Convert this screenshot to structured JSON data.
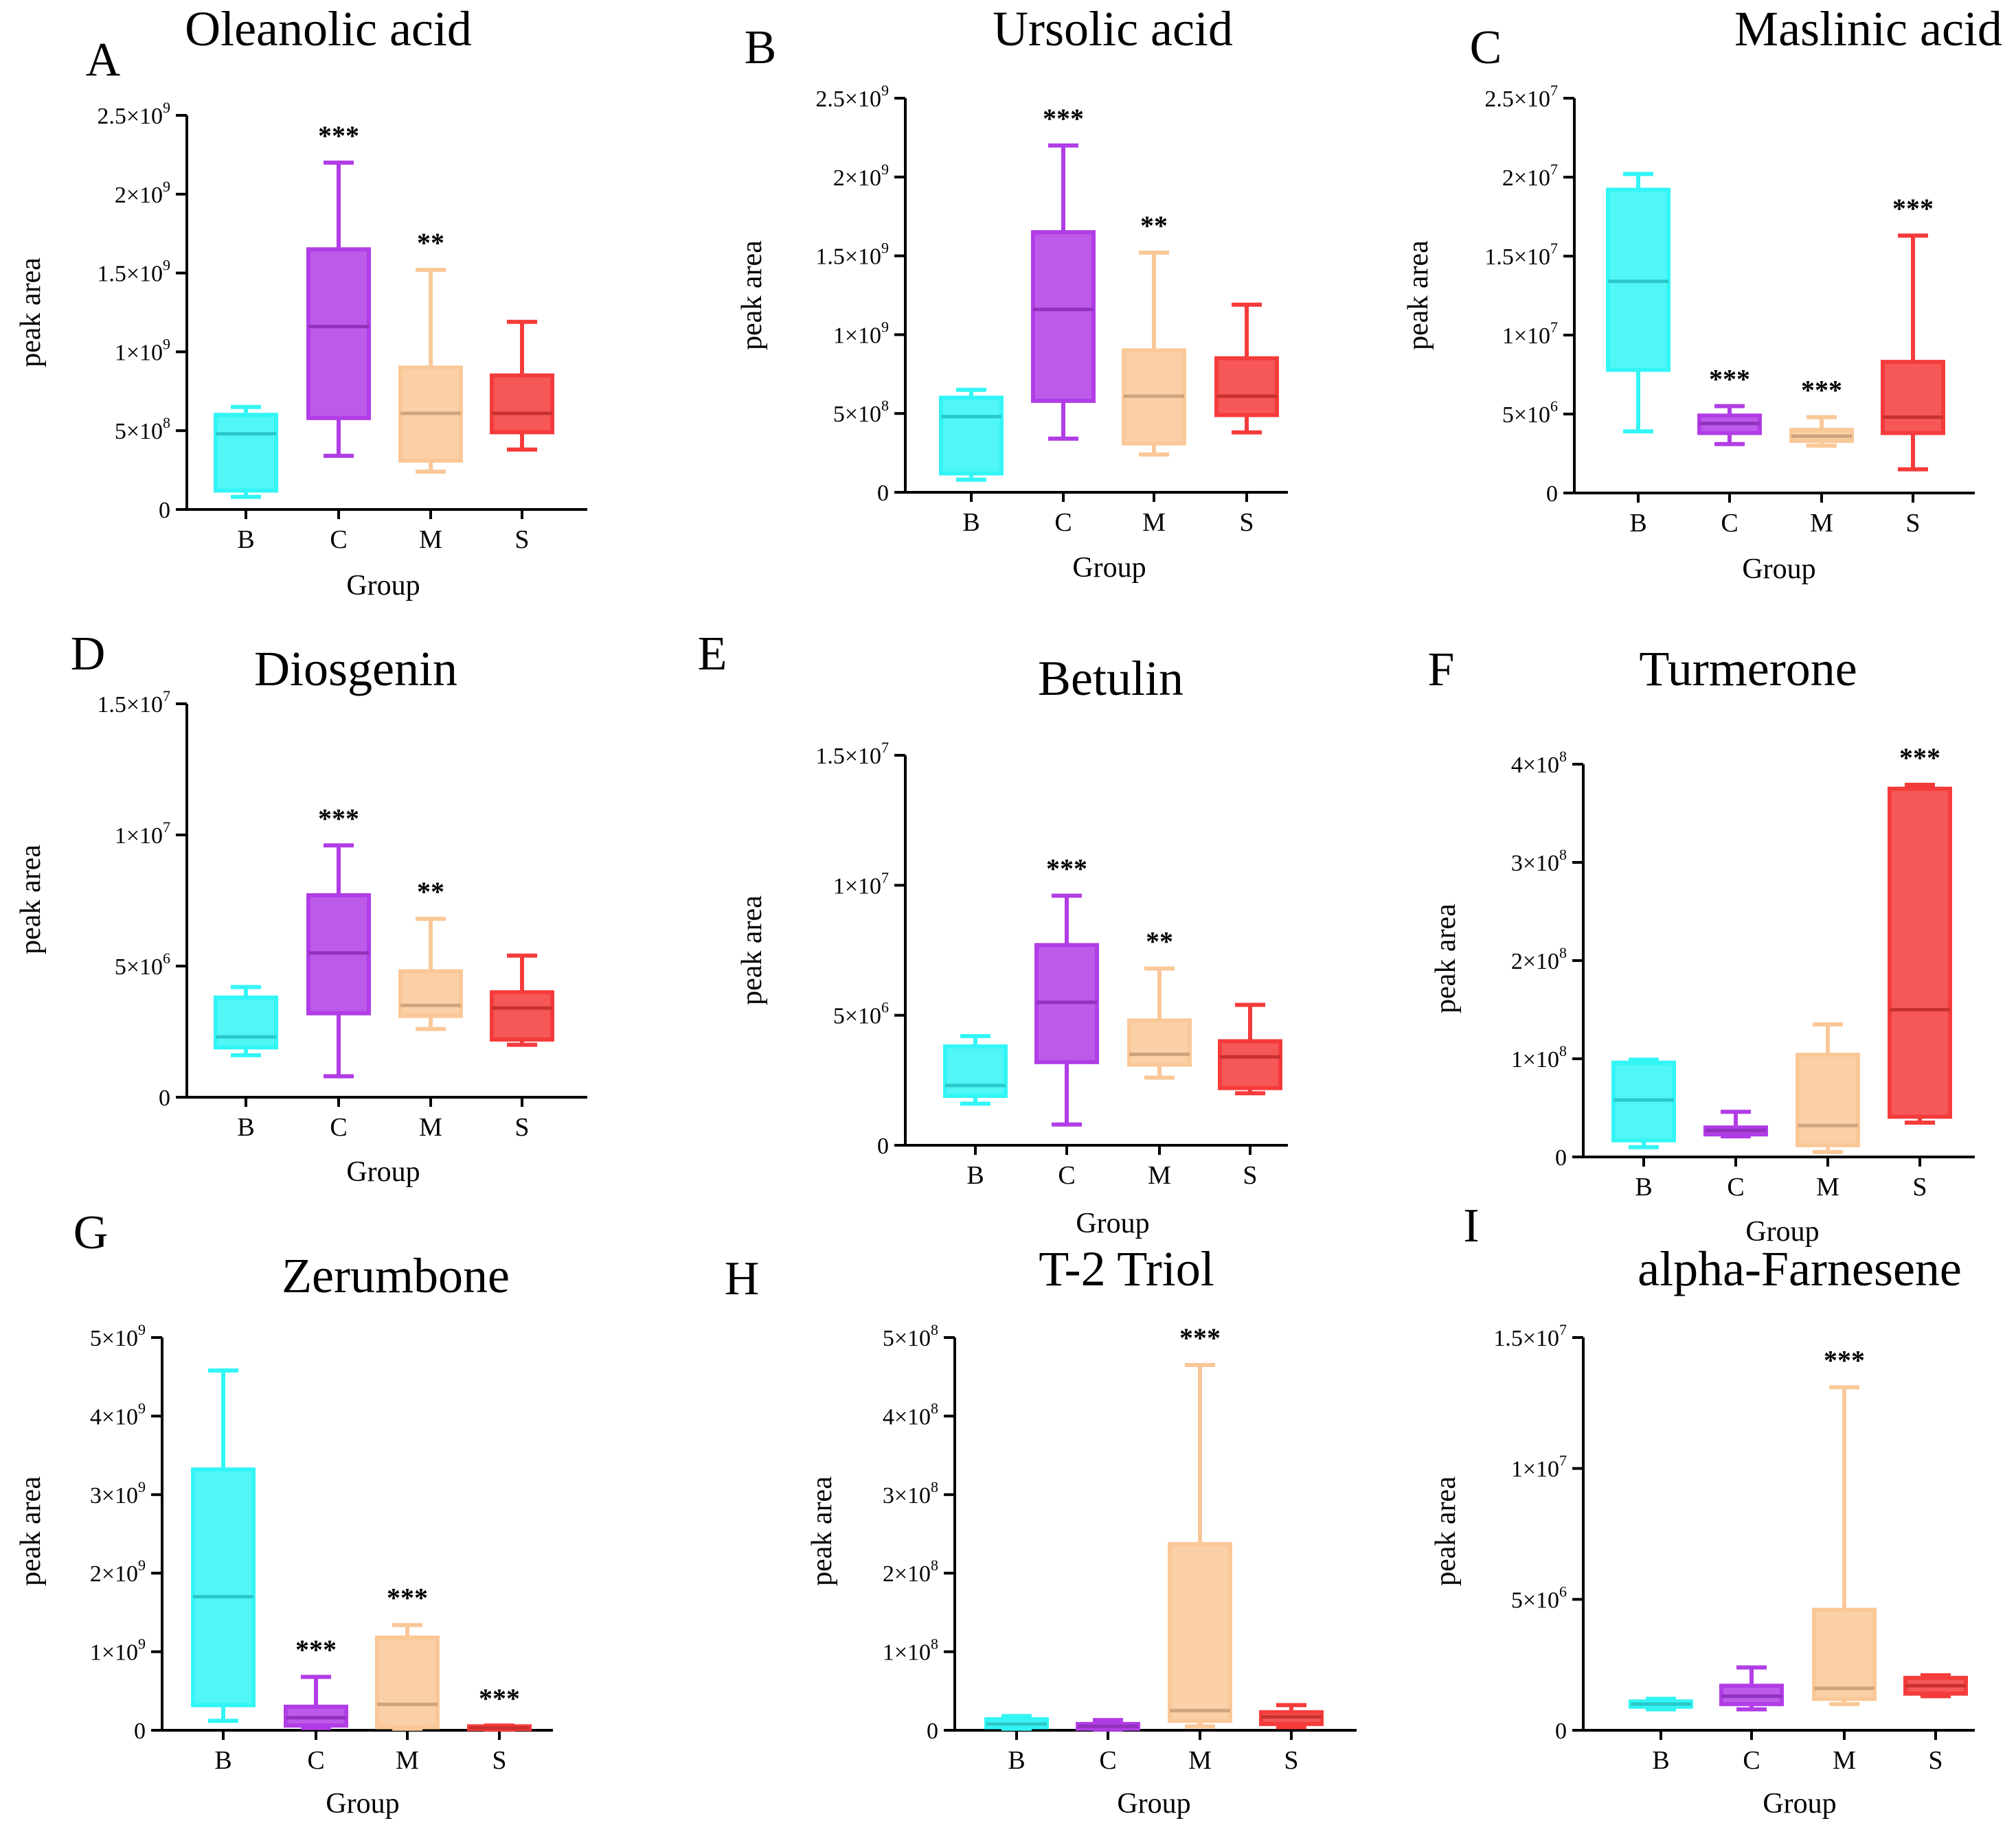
{
  "chart_data": [
    {
      "panel": "A",
      "type": "box",
      "title": "Oleanolic acid",
      "xlabel": "Group",
      "ylabel": "peak area",
      "ylim": [
        0,
        2500000000
      ],
      "yticks": [
        {
          "value": 0,
          "mant": "0",
          "exp": ""
        },
        {
          "value": 500000000,
          "mant": "5×10",
          "exp": "8"
        },
        {
          "value": 1000000000,
          "mant": "1×10",
          "exp": "9"
        },
        {
          "value": 1500000000,
          "mant": "1.5×10",
          "exp": "9"
        },
        {
          "value": 2000000000,
          "mant": "2×10",
          "exp": "9"
        },
        {
          "value": 2500000000,
          "mant": "2.5×10",
          "exp": "9"
        }
      ],
      "categories": [
        "B",
        "C",
        "M",
        "S"
      ],
      "boxes": [
        {
          "group": "B",
          "min": 80000000,
          "q1": 120000000,
          "median": 480000000,
          "q3": 600000000,
          "max": 650000000,
          "sig": "",
          "color": "#33F5F5"
        },
        {
          "group": "C",
          "min": 340000000,
          "q1": 580000000,
          "median": 1160000000,
          "q3": 1650000000,
          "max": 2200000000,
          "sig": "***",
          "color": "#B13DE6"
        },
        {
          "group": "M",
          "min": 240000000,
          "q1": 310000000,
          "median": 610000000,
          "q3": 900000000,
          "max": 1520000000,
          "sig": "**",
          "color": "#FAC898"
        },
        {
          "group": "S",
          "min": 380000000,
          "q1": 490000000,
          "median": 610000000,
          "q3": 850000000,
          "max": 1190000000,
          "sig": "",
          "color": "#F53B3B"
        }
      ]
    },
    {
      "panel": "B",
      "type": "box",
      "title": "Ursolic acid",
      "xlabel": "Group",
      "ylabel": "peak area",
      "ylim": [
        0,
        2500000000
      ],
      "yticks": [
        {
          "value": 0,
          "mant": "0",
          "exp": ""
        },
        {
          "value": 500000000,
          "mant": "5×10",
          "exp": "8"
        },
        {
          "value": 1000000000,
          "mant": "1×10",
          "exp": "9"
        },
        {
          "value": 1500000000,
          "mant": "1.5×10",
          "exp": "9"
        },
        {
          "value": 2000000000,
          "mant": "2×10",
          "exp": "9"
        },
        {
          "value": 2500000000,
          "mant": "2.5×10",
          "exp": "9"
        }
      ],
      "categories": [
        "B",
        "C",
        "M",
        "S"
      ],
      "boxes": [
        {
          "group": "B",
          "min": 80000000,
          "q1": 120000000,
          "median": 480000000,
          "q3": 600000000,
          "max": 650000000,
          "sig": "",
          "color": "#33F5F5"
        },
        {
          "group": "C",
          "min": 340000000,
          "q1": 580000000,
          "median": 1160000000,
          "q3": 1650000000,
          "max": 2200000000,
          "sig": "***",
          "color": "#B13DE6"
        },
        {
          "group": "M",
          "min": 240000000,
          "q1": 310000000,
          "median": 610000000,
          "q3": 900000000,
          "max": 1520000000,
          "sig": "**",
          "color": "#FAC898"
        },
        {
          "group": "S",
          "min": 380000000,
          "q1": 490000000,
          "median": 610000000,
          "q3": 850000000,
          "max": 1190000000,
          "sig": "",
          "color": "#F53B3B"
        }
      ]
    },
    {
      "panel": "C",
      "type": "box",
      "title": "Maslinic acid",
      "xlabel": "Group",
      "ylabel": "peak area",
      "ylim": [
        0,
        25000000
      ],
      "yticks": [
        {
          "value": 0,
          "mant": "0",
          "exp": ""
        },
        {
          "value": 5000000,
          "mant": "5×10",
          "exp": "6"
        },
        {
          "value": 10000000,
          "mant": "1×10",
          "exp": "7"
        },
        {
          "value": 15000000,
          "mant": "1.5×10",
          "exp": "7"
        },
        {
          "value": 20000000,
          "mant": "2×10",
          "exp": "7"
        },
        {
          "value": 25000000,
          "mant": "2.5×10",
          "exp": "7"
        }
      ],
      "categories": [
        "B",
        "C",
        "M",
        "S"
      ],
      "boxes": [
        {
          "group": "B",
          "min": 3900000,
          "q1": 7800000,
          "median": 13400000,
          "q3": 19200000,
          "max": 20200000,
          "sig": "",
          "color": "#33F5F5"
        },
        {
          "group": "C",
          "min": 3100000,
          "q1": 3800000,
          "median": 4400000,
          "q3": 4900000,
          "max": 5500000,
          "sig": "***",
          "color": "#B13DE6"
        },
        {
          "group": "M",
          "min": 3000000,
          "q1": 3300000,
          "median": 3600000,
          "q3": 4000000,
          "max": 4800000,
          "sig": "***",
          "color": "#FAC898"
        },
        {
          "group": "S",
          "min": 1500000,
          "q1": 3800000,
          "median": 4800000,
          "q3": 8300000,
          "max": 16300000,
          "sig": "***",
          "color": "#F53B3B"
        }
      ]
    },
    {
      "panel": "D",
      "type": "box",
      "title": "Diosgenin",
      "xlabel": "Group",
      "ylabel": "peak area",
      "ylim": [
        0,
        15000000
      ],
      "yticks": [
        {
          "value": 0,
          "mant": "0",
          "exp": ""
        },
        {
          "value": 5000000,
          "mant": "5×10",
          "exp": "6"
        },
        {
          "value": 10000000,
          "mant": "1×10",
          "exp": "7"
        },
        {
          "value": 15000000,
          "mant": "1.5×10",
          "exp": "7"
        }
      ],
      "categories": [
        "B",
        "C",
        "M",
        "S"
      ],
      "boxes": [
        {
          "group": "B",
          "min": 1600000,
          "q1": 1900000,
          "median": 2300000,
          "q3": 3800000,
          "max": 4200000,
          "sig": "",
          "color": "#33F5F5"
        },
        {
          "group": "C",
          "min": 800000,
          "q1": 3200000,
          "median": 5500000,
          "q3": 7700000,
          "max": 9600000,
          "sig": "***",
          "color": "#B13DE6"
        },
        {
          "group": "M",
          "min": 2600000,
          "q1": 3100000,
          "median": 3500000,
          "q3": 4800000,
          "max": 6800000,
          "sig": "**",
          "color": "#FAC898"
        },
        {
          "group": "S",
          "min": 2000000,
          "q1": 2200000,
          "median": 3400000,
          "q3": 4000000,
          "max": 5400000,
          "sig": "",
          "color": "#F53B3B"
        }
      ]
    },
    {
      "panel": "E",
      "type": "box",
      "title": "Betulin",
      "xlabel": "Group",
      "ylabel": "peak area",
      "ylim": [
        0,
        15000000
      ],
      "yticks": [
        {
          "value": 0,
          "mant": "0",
          "exp": ""
        },
        {
          "value": 5000000,
          "mant": "5×10",
          "exp": "6"
        },
        {
          "value": 10000000,
          "mant": "1×10",
          "exp": "7"
        },
        {
          "value": 15000000,
          "mant": "1.5×10",
          "exp": "7"
        }
      ],
      "categories": [
        "B",
        "C",
        "M",
        "S"
      ],
      "boxes": [
        {
          "group": "B",
          "min": 1600000,
          "q1": 1900000,
          "median": 2300000,
          "q3": 3800000,
          "max": 4200000,
          "sig": "",
          "color": "#33F5F5"
        },
        {
          "group": "C",
          "min": 800000,
          "q1": 3200000,
          "median": 5500000,
          "q3": 7700000,
          "max": 9600000,
          "sig": "***",
          "color": "#B13DE6"
        },
        {
          "group": "M",
          "min": 2600000,
          "q1": 3100000,
          "median": 3500000,
          "q3": 4800000,
          "max": 6800000,
          "sig": "**",
          "color": "#FAC898"
        },
        {
          "group": "S",
          "min": 2000000,
          "q1": 2200000,
          "median": 3400000,
          "q3": 4000000,
          "max": 5400000,
          "sig": "",
          "color": "#F53B3B"
        }
      ]
    },
    {
      "panel": "F",
      "type": "box",
      "title": "Turmerone",
      "xlabel": "Group",
      "ylabel": "peak area",
      "ylim": [
        0,
        400000000
      ],
      "yticks": [
        {
          "value": 0,
          "mant": "0",
          "exp": ""
        },
        {
          "value": 100000000,
          "mant": "1×10",
          "exp": "8"
        },
        {
          "value": 200000000,
          "mant": "2×10",
          "exp": "8"
        },
        {
          "value": 300000000,
          "mant": "3×10",
          "exp": "8"
        },
        {
          "value": 400000000,
          "mant": "4×10",
          "exp": "8"
        }
      ],
      "categories": [
        "B",
        "C",
        "M",
        "S"
      ],
      "boxes": [
        {
          "group": "B",
          "min": 10000000,
          "q1": 17000000,
          "median": 58000000,
          "q3": 96000000,
          "max": 99000000,
          "sig": "",
          "color": "#33F5F5"
        },
        {
          "group": "C",
          "min": 21000000,
          "q1": 23000000,
          "median": 27000000,
          "q3": 30000000,
          "max": 46000000,
          "sig": "",
          "color": "#B13DE6"
        },
        {
          "group": "M",
          "min": 5000000,
          "q1": 12000000,
          "median": 32000000,
          "q3": 104000000,
          "max": 135000000,
          "sig": "",
          "color": "#FAC898"
        },
        {
          "group": "S",
          "min": 35000000,
          "q1": 41000000,
          "median": 150000000,
          "q3": 375000000,
          "max": 379000000,
          "sig": "***",
          "color": "#F53B3B"
        }
      ]
    },
    {
      "panel": "G",
      "type": "box",
      "title": "Zerumbone",
      "xlabel": "Group",
      "ylabel": "peak area",
      "ylim": [
        0,
        5000000000
      ],
      "yticks": [
        {
          "value": 0,
          "mant": "0",
          "exp": ""
        },
        {
          "value": 1000000000,
          "mant": "1×10",
          "exp": "9"
        },
        {
          "value": 2000000000,
          "mant": "2×10",
          "exp": "9"
        },
        {
          "value": 3000000000,
          "mant": "3×10",
          "exp": "9"
        },
        {
          "value": 4000000000,
          "mant": "4×10",
          "exp": "9"
        },
        {
          "value": 5000000000,
          "mant": "5×10",
          "exp": "9"
        }
      ],
      "categories": [
        "B",
        "C",
        "M",
        "S"
      ],
      "boxes": [
        {
          "group": "B",
          "min": 120000000,
          "q1": 320000000,
          "median": 1700000000,
          "q3": 3320000000,
          "max": 4580000000,
          "sig": "",
          "color": "#33F5F5"
        },
        {
          "group": "C",
          "min": 30000000,
          "q1": 60000000,
          "median": 160000000,
          "q3": 300000000,
          "max": 680000000,
          "sig": "***",
          "color": "#B13DE6"
        },
        {
          "group": "M",
          "min": 20000000,
          "q1": 40000000,
          "median": 330000000,
          "q3": 1180000000,
          "max": 1340000000,
          "sig": "***",
          "color": "#FAC898"
        },
        {
          "group": "S",
          "min": 10000000,
          "q1": 15000000,
          "median": 30000000,
          "q3": 50000000,
          "max": 60000000,
          "sig": "***",
          "color": "#F53B3B"
        }
      ]
    },
    {
      "panel": "H",
      "type": "box",
      "title": "T-2 Triol",
      "xlabel": "Group",
      "ylabel": "peak area",
      "ylim": [
        0,
        500000000
      ],
      "yticks": [
        {
          "value": 0,
          "mant": "0",
          "exp": ""
        },
        {
          "value": 100000000,
          "mant": "1×10",
          "exp": "8"
        },
        {
          "value": 200000000,
          "mant": "2×10",
          "exp": "8"
        },
        {
          "value": 300000000,
          "mant": "3×10",
          "exp": "8"
        },
        {
          "value": 400000000,
          "mant": "4×10",
          "exp": "8"
        },
        {
          "value": 500000000,
          "mant": "5×10",
          "exp": "8"
        }
      ],
      "categories": [
        "B",
        "C",
        "M",
        "S"
      ],
      "boxes": [
        {
          "group": "B",
          "min": 2000000,
          "q1": 4000000,
          "median": 8000000,
          "q3": 14000000,
          "max": 18000000,
          "sig": "",
          "color": "#33F5F5"
        },
        {
          "group": "C",
          "min": 1000000,
          "q1": 2000000,
          "median": 5000000,
          "q3": 8000000,
          "max": 13000000,
          "sig": "",
          "color": "#B13DE6"
        },
        {
          "group": "M",
          "min": 5000000,
          "q1": 12000000,
          "median": 25000000,
          "q3": 237000000,
          "max": 465000000,
          "sig": "***",
          "color": "#FAC898"
        },
        {
          "group": "S",
          "min": 4000000,
          "q1": 8000000,
          "median": 17000000,
          "q3": 23000000,
          "max": 32000000,
          "sig": "",
          "color": "#F53B3B"
        }
      ]
    },
    {
      "panel": "I",
      "type": "box",
      "title": "alpha-Farnesene",
      "xlabel": "Group",
      "ylabel": "peak area",
      "ylim": [
        0,
        15000000
      ],
      "yticks": [
        {
          "value": 0,
          "mant": "0",
          "exp": ""
        },
        {
          "value": 5000000,
          "mant": "5×10",
          "exp": "6"
        },
        {
          "value": 10000000,
          "mant": "1×10",
          "exp": "7"
        },
        {
          "value": 15000000,
          "mant": "1.5×10",
          "exp": "7"
        }
      ],
      "categories": [
        "B",
        "C",
        "M",
        "S"
      ],
      "boxes": [
        {
          "group": "B",
          "min": 800000,
          "q1": 900000,
          "median": 1000000,
          "q3": 1100000,
          "max": 1200000,
          "sig": "",
          "color": "#33F5F5"
        },
        {
          "group": "C",
          "min": 800000,
          "q1": 1000000,
          "median": 1300000,
          "q3": 1700000,
          "max": 2400000,
          "sig": "",
          "color": "#B13DE6"
        },
        {
          "group": "M",
          "min": 1000000,
          "q1": 1200000,
          "median": 1600000,
          "q3": 4600000,
          "max": 13100000,
          "sig": "***",
          "color": "#FAC898"
        },
        {
          "group": "S",
          "min": 1300000,
          "q1": 1400000,
          "median": 1700000,
          "q3": 2000000,
          "max": 2100000,
          "sig": "",
          "color": "#F53B3B"
        }
      ]
    }
  ]
}
